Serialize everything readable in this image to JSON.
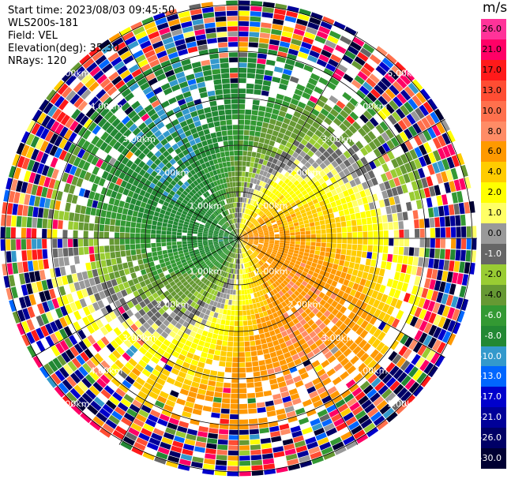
{
  "header": {
    "start_time": "Start time: 2023/08/03 09:45:50",
    "instrument": "WLS200s-181",
    "field": "Field: VEL",
    "elevation": "Elevation(deg): 35.30",
    "nrays": "NRays: 120"
  },
  "colorbar": {
    "unit": "m/s",
    "ticks": [
      "26.0",
      "21.0",
      "17.0",
      "13.0",
      "10.0",
      "8.0",
      "6.0",
      "4.0",
      "2.0",
      "1.0",
      "0.0",
      "-1.0",
      "-2.0",
      "-4.0",
      "-6.0",
      "-8.0",
      "-10.0",
      "-13.0",
      "-17.0",
      "-21.0",
      "-26.0",
      "-30.0"
    ],
    "colors": [
      "#ff3399",
      "#ff0066",
      "#ff1a1a",
      "#ff4d33",
      "#ff704d",
      "#ff8c66",
      "#ff9900",
      "#ffcc00",
      "#ffff00",
      "#ffff66",
      "#999999",
      "#666666",
      "#99cc33",
      "#669933",
      "#339933",
      "#228833",
      "#3399cc",
      "#0066ff",
      "#0000cc",
      "#000099",
      "#000066",
      "#000033"
    ]
  },
  "chart_data": {
    "type": "ppi",
    "field": "VEL",
    "units": "m/s",
    "elevation_deg": 35.3,
    "n_rays": 120,
    "range_ring_labels": [
      "1.00km",
      "2.00km",
      "3.00km",
      "4.00km",
      "5.00km"
    ],
    "colorbar_ticks": [
      26.0,
      21.0,
      17.0,
      13.0,
      10.0,
      8.0,
      6.0,
      4.0,
      2.0,
      1.0,
      0.0,
      -1.0,
      -2.0,
      -4.0,
      -6.0,
      -8.0,
      -10.0,
      -13.0,
      -17.0,
      -21.0,
      -26.0,
      -30.0
    ],
    "grid": true
  }
}
